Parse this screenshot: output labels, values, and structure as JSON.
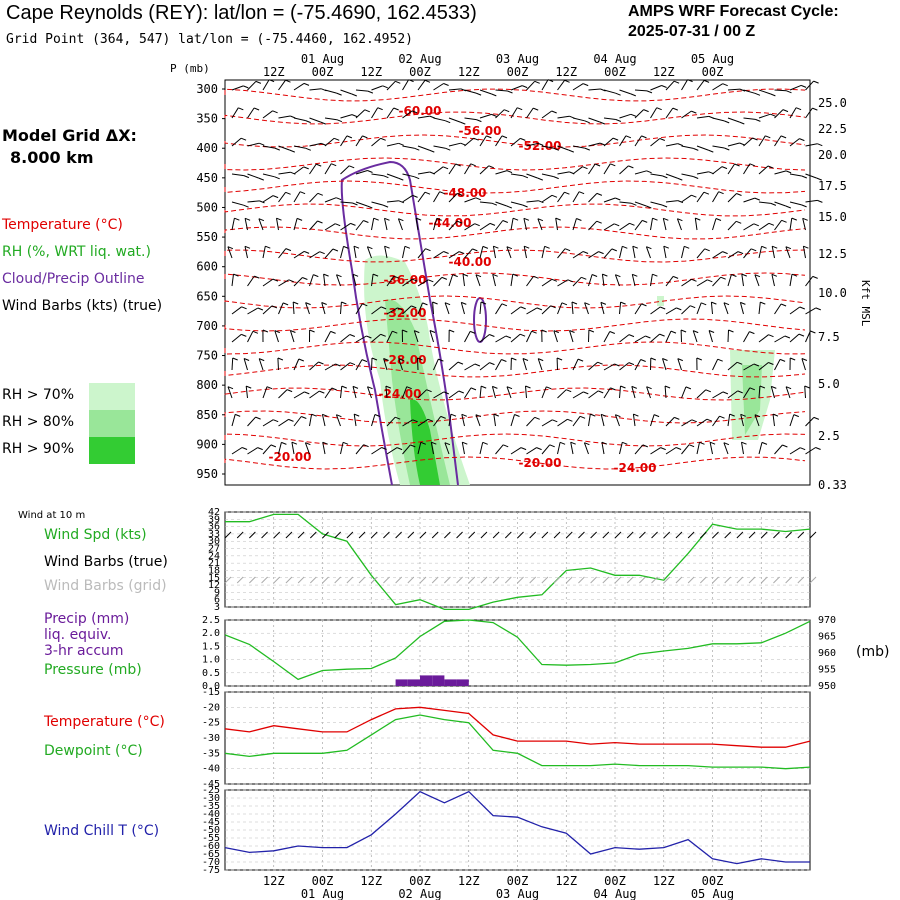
{
  "header": {
    "title": "Cape Reynolds (REY):  lat/lon = (-75.4690, 162.4533)",
    "grid_point": "Grid Point (364, 547) lat/lon = (-75.4460, 162.4952)",
    "cycle_line1": "AMPS WRF Forecast Cycle:",
    "cycle_line2": "2025-07-31 / 00  Z"
  },
  "legend": {
    "model_grid_label": "Model Grid ΔX:",
    "model_grid_value": "8.000 km",
    "temperature": "Temperature (°C)",
    "rh": "RH (%, WRT liq. wat.)",
    "cloud": "Cloud/Precip Outline",
    "wind_barbs": "Wind Barbs (kts) (true)",
    "rh70": "RH > 70%",
    "rh80": "RH > 80%",
    "rh90": "RH > 90%"
  },
  "colors": {
    "temp": "#e00000",
    "rh70": "#ccf5cc",
    "rh80": "#99e699",
    "rh90": "#33cc33",
    "cloud": "#6a2ca0",
    "wind_spd": "#22bb22",
    "barb_grid": "#aaaaaa",
    "precip": "#6a1b9a",
    "pressure": "#22bb22",
    "dewpoint": "#22bb22",
    "windchill": "#2222aa"
  },
  "time_axis": {
    "hour_labels": [
      "12Z",
      "00Z",
      "12Z",
      "00Z",
      "12Z",
      "00Z",
      "12Z",
      "00Z",
      "12Z",
      "00Z"
    ],
    "date_labels": [
      "01 Aug",
      "02 Aug",
      "03 Aug",
      "04 Aug",
      "05 Aug"
    ]
  },
  "cross_section": {
    "p_axis_label": "P (mb)",
    "pressure_ticks": [
      "300",
      "350",
      "400",
      "450",
      "500",
      "550",
      "600",
      "650",
      "700",
      "750",
      "800",
      "850",
      "900",
      "950"
    ],
    "height_axis_label": "Kft MSL",
    "height_ticks": [
      "25.0",
      "22.5",
      "20.0",
      "17.5",
      "15.0",
      "12.5",
      "10.0",
      "7.5",
      "5.0",
      "2.5",
      "0.33"
    ],
    "temp_labels": [
      "-60.00",
      "-56.00",
      "-52.00",
      "-48.00",
      "-44.00",
      "-40.00",
      "-36.00",
      "-32.00",
      "-28.00",
      "-24.00",
      "-20.00",
      "-20.00",
      "-24.00"
    ]
  },
  "panels": {
    "wind_at_10m": "Wind at 10 m",
    "wind_spd_label": "Wind Spd (kts)",
    "wind_barbs_true": "Wind Barbs (true)",
    "wind_barbs_grid": "Wind Barbs (grid)",
    "precip_label_1": "Precip (mm)",
    "precip_label_2": "liq. equiv.",
    "precip_label_3": "3-hr accum",
    "pressure_label": "Pressure (mb)",
    "pressure_unit": "(mb)",
    "temperature_label": "Temperature (°C)",
    "dewpoint_label": "Dewpoint (°C)",
    "windchill_label": "Wind Chill T (°C)"
  },
  "chart_data": [
    {
      "type": "line",
      "panel": "wind_speed",
      "y_ticks": [
        "42",
        "39",
        "36",
        "33",
        "30",
        "27",
        "24",
        "21",
        "18",
        "15",
        "12",
        "9",
        "6",
        "3"
      ],
      "ylim": [
        3,
        42
      ],
      "x": [
        0,
        6,
        12,
        18,
        24,
        30,
        36,
        42,
        48,
        54,
        60,
        66,
        72,
        78,
        84,
        90,
        96,
        102,
        108,
        114,
        120,
        126,
        132,
        138,
        144
      ],
      "series": [
        {
          "name": "Wind Spd (kts)",
          "values": [
            38,
            38,
            41,
            41,
            33,
            30,
            16,
            4,
            6,
            2,
            2,
            5,
            7,
            8,
            18,
            19,
            16,
            16,
            14,
            25,
            37,
            35,
            35,
            34,
            35
          ]
        }
      ]
    },
    {
      "type": "bar",
      "panel": "precip",
      "y_ticks": [
        "2.5",
        "2.0",
        "1.5",
        "1.0",
        "0.5",
        "0.0"
      ],
      "ylim": [
        0,
        2.5
      ],
      "x": [
        42,
        45,
        48,
        51,
        54,
        57
      ],
      "values": [
        0.25,
        0.25,
        0.4,
        0.4,
        0.25,
        0.25
      ]
    },
    {
      "type": "line",
      "panel": "pressure",
      "right_ticks": [
        "970",
        "965",
        "960",
        "955",
        "950"
      ],
      "ylim": [
        950,
        970
      ],
      "x": [
        0,
        6,
        12,
        18,
        24,
        30,
        36,
        42,
        48,
        54,
        60,
        66,
        72,
        78,
        84,
        90,
        96,
        102,
        108,
        114,
        120,
        126,
        132,
        138,
        144
      ],
      "series": [
        {
          "name": "Pressure (mb)",
          "values": [
            965.5,
            962.6,
            957.4,
            952,
            954.7,
            955.1,
            955.3,
            958.5,
            965,
            969.6,
            970,
            969.2,
            964.8,
            956.5,
            956.3,
            956.5,
            957,
            959.7,
            960.6,
            961.4,
            962.8,
            962.8,
            963.1,
            966,
            969.6
          ]
        }
      ]
    },
    {
      "type": "line",
      "panel": "temperature",
      "y_ticks": [
        "-15",
        "-20",
        "-25",
        "-30",
        "-35",
        "-40",
        "-45"
      ],
      "ylim": [
        -45,
        -15
      ],
      "x": [
        0,
        6,
        12,
        18,
        24,
        30,
        36,
        42,
        48,
        54,
        60,
        66,
        72,
        78,
        84,
        90,
        96,
        102,
        108,
        114,
        120,
        126,
        132,
        138,
        144
      ],
      "series": [
        {
          "name": "Temperature (°C)",
          "values": [
            -27,
            -28,
            -26,
            -27,
            -28,
            -28,
            -24,
            -20.5,
            -20,
            -21,
            -22,
            -29,
            -31,
            -31,
            -31,
            -32,
            -31.5,
            -32,
            -32,
            -32,
            -32,
            -32.5,
            -33,
            -33,
            -31
          ]
        },
        {
          "name": "Dewpoint (°C)",
          "values": [
            -35,
            -36,
            -35,
            -35,
            -35,
            -34,
            -29,
            -24,
            -22.5,
            -24,
            -25,
            -34,
            -35,
            -39,
            -39,
            -39,
            -38.5,
            -39,
            -39,
            -39,
            -39.5,
            -39.5,
            -39.5,
            -40,
            -39.5
          ]
        }
      ]
    },
    {
      "type": "line",
      "panel": "wind_chill",
      "y_ticks": [
        "-25",
        "-30",
        "-35",
        "-40",
        "-45",
        "-50",
        "-55",
        "-60",
        "-65",
        "-70",
        "-75"
      ],
      "ylim": [
        -75,
        -25
      ],
      "x": [
        0,
        6,
        12,
        18,
        24,
        30,
        36,
        42,
        48,
        54,
        60,
        66,
        72,
        78,
        84,
        90,
        96,
        102,
        108,
        114,
        120,
        126,
        132,
        138,
        144
      ],
      "series": [
        {
          "name": "Wind Chill T (°C)",
          "values": [
            -61,
            -64,
            -63,
            -60,
            -61,
            -61,
            -53,
            -40,
            -26,
            -33,
            -26,
            -41,
            -42,
            -48,
            -52,
            -65,
            -61,
            -62,
            -61,
            -56,
            -68,
            -71,
            -68,
            -70,
            -70
          ]
        }
      ]
    }
  ]
}
